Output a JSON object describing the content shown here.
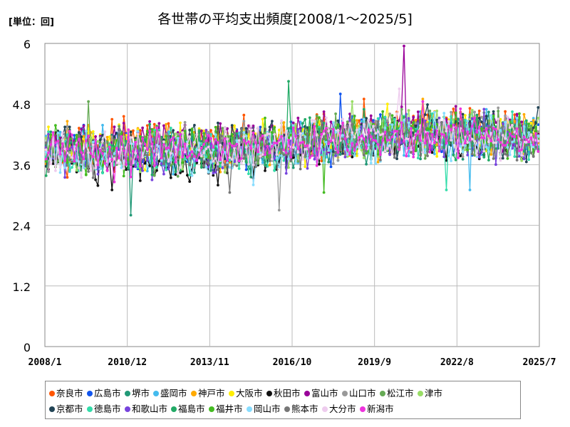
{
  "unit_label": "[単位：回]",
  "chart_data": {
    "type": "line",
    "title": "各世帯の平均支出頻度[2008/1～2025/5]",
    "xlabel": "",
    "ylabel": "",
    "ylim": [
      0,
      6
    ],
    "yticks": [
      0,
      1.2,
      2.4,
      3.6,
      4.8,
      6
    ],
    "ytick_labels": [
      "0",
      "1.2",
      "2.4",
      "3.6",
      "4.8",
      "6"
    ],
    "xlim": [
      "2008/1",
      "2025/7"
    ],
    "xtick_labels": [
      "2008/1",
      "2010/12",
      "2013/11",
      "2016/10",
      "2019/9",
      "2022/8",
      "2025/7"
    ],
    "grid": true,
    "legend_position": "bottom",
    "series": [
      {
        "name": "奈良市",
        "color": "#FF5500",
        "profile": [
          [
            0,
            3.95
          ],
          [
            35,
            4.0
          ],
          [
            70,
            3.95
          ],
          [
            105,
            4.05
          ],
          [
            140,
            4.25
          ],
          [
            175,
            4.35
          ],
          [
            209,
            4.2
          ]
        ],
        "extremes": [
          [
            135,
            4.9
          ]
        ]
      },
      {
        "name": "広島市",
        "color": "#1155EE",
        "profile": [
          [
            0,
            3.9
          ],
          [
            35,
            3.9
          ],
          [
            70,
            3.85
          ],
          [
            105,
            4.0
          ],
          [
            140,
            4.2
          ],
          [
            175,
            4.25
          ],
          [
            209,
            4.2
          ]
        ],
        "extremes": [
          [
            125,
            5.0
          ]
        ]
      },
      {
        "name": "堺市",
        "color": "#229977",
        "profile": [
          [
            0,
            3.9
          ],
          [
            35,
            3.85
          ],
          [
            70,
            3.85
          ],
          [
            105,
            3.95
          ],
          [
            140,
            4.15
          ],
          [
            175,
            4.2
          ],
          [
            209,
            4.15
          ]
        ],
        "extremes": [
          [
            36,
            2.6
          ]
        ]
      },
      {
        "name": "盛岡市",
        "color": "#44BBEE",
        "profile": [
          [
            0,
            3.85
          ],
          [
            35,
            3.85
          ],
          [
            70,
            3.85
          ],
          [
            105,
            3.95
          ],
          [
            140,
            4.1
          ],
          [
            175,
            4.2
          ],
          [
            209,
            4.1
          ]
        ],
        "extremes": [
          [
            180,
            3.1
          ]
        ]
      },
      {
        "name": "神戸市",
        "color": "#FFAA00",
        "profile": [
          [
            0,
            3.9
          ],
          [
            35,
            3.95
          ],
          [
            70,
            3.95
          ],
          [
            105,
            4.05
          ],
          [
            140,
            4.2
          ],
          [
            175,
            4.25
          ],
          [
            209,
            4.2
          ]
        ],
        "extremes": [
          [
            160,
            4.9
          ]
        ]
      },
      {
        "name": "大阪市",
        "color": "#FFEE00",
        "profile": [
          [
            0,
            3.95
          ],
          [
            35,
            3.95
          ],
          [
            70,
            4.0
          ],
          [
            105,
            4.05
          ],
          [
            140,
            4.2
          ],
          [
            175,
            4.25
          ],
          [
            209,
            4.2
          ]
        ],
        "extremes": [
          [
            145,
            4.8
          ]
        ]
      },
      {
        "name": "秋田市",
        "color": "#111111",
        "profile": [
          [
            0,
            3.75
          ],
          [
            35,
            3.6
          ],
          [
            70,
            3.6
          ],
          [
            105,
            3.85
          ],
          [
            140,
            4.05
          ],
          [
            175,
            4.1
          ],
          [
            209,
            4.05
          ]
        ],
        "extremes": [
          [
            28,
            3.1
          ]
        ]
      },
      {
        "name": "富山市",
        "color": "#990099",
        "profile": [
          [
            0,
            3.95
          ],
          [
            35,
            3.95
          ],
          [
            70,
            4.1
          ],
          [
            105,
            4.15
          ],
          [
            140,
            4.35
          ],
          [
            175,
            4.3
          ],
          [
            209,
            4.3
          ]
        ],
        "extremes": [
          [
            152,
            5.95
          ]
        ]
      },
      {
        "name": "山口市",
        "color": "#999999",
        "profile": [
          [
            0,
            3.9
          ],
          [
            35,
            3.95
          ],
          [
            70,
            3.95
          ],
          [
            105,
            4.05
          ],
          [
            140,
            4.2
          ],
          [
            175,
            4.25
          ],
          [
            209,
            4.2
          ]
        ],
        "extremes": [
          [
            99,
            2.7
          ]
        ]
      },
      {
        "name": "松江市",
        "color": "#66AA55",
        "profile": [
          [
            0,
            3.9
          ],
          [
            35,
            3.9
          ],
          [
            70,
            3.9
          ],
          [
            105,
            4.0
          ],
          [
            140,
            4.15
          ],
          [
            175,
            4.2
          ],
          [
            209,
            4.15
          ]
        ],
        "extremes": [
          [
            18,
            4.85
          ]
        ]
      },
      {
        "name": "津市",
        "color": "#99DD66",
        "profile": [
          [
            0,
            3.85
          ],
          [
            35,
            3.9
          ],
          [
            70,
            3.9
          ],
          [
            105,
            4.0
          ],
          [
            140,
            4.15
          ],
          [
            175,
            4.2
          ],
          [
            209,
            4.15
          ]
        ],
        "extremes": [
          [
            130,
            4.85
          ]
        ]
      },
      {
        "name": "京都市",
        "color": "#224455",
        "profile": [
          [
            0,
            3.9
          ],
          [
            35,
            3.95
          ],
          [
            70,
            3.95
          ],
          [
            105,
            4.05
          ],
          [
            140,
            4.2
          ],
          [
            175,
            4.25
          ],
          [
            209,
            4.2
          ]
        ],
        "extremes": [
          [
            190,
            4.65
          ]
        ]
      },
      {
        "name": "徳島市",
        "color": "#33DDAA",
        "profile": [
          [
            0,
            3.85
          ],
          [
            35,
            3.85
          ],
          [
            70,
            3.85
          ],
          [
            105,
            3.95
          ],
          [
            140,
            4.15
          ],
          [
            175,
            4.2
          ],
          [
            209,
            4.1
          ]
        ],
        "extremes": [
          [
            170,
            3.1
          ]
        ]
      },
      {
        "name": "和歌山市",
        "color": "#7744DD",
        "profile": [
          [
            0,
            3.8
          ],
          [
            35,
            3.8
          ],
          [
            70,
            3.8
          ],
          [
            105,
            3.95
          ],
          [
            140,
            4.1
          ],
          [
            175,
            4.15
          ],
          [
            209,
            4.05
          ]
        ],
        "extremes": [
          [
            45,
            3.3
          ]
        ]
      },
      {
        "name": "福島市",
        "color": "#22AA66",
        "profile": [
          [
            0,
            3.85
          ],
          [
            35,
            3.9
          ],
          [
            70,
            3.9
          ],
          [
            105,
            4.0
          ],
          [
            140,
            4.15
          ],
          [
            175,
            4.2
          ],
          [
            209,
            4.15
          ]
        ],
        "extremes": [
          [
            103,
            5.25
          ]
        ]
      },
      {
        "name": "福井市",
        "color": "#44BB22",
        "profile": [
          [
            0,
            3.9
          ],
          [
            35,
            3.9
          ],
          [
            70,
            3.95
          ],
          [
            105,
            4.05
          ],
          [
            140,
            4.2
          ],
          [
            175,
            4.25
          ],
          [
            209,
            4.2
          ]
        ],
        "extremes": [
          [
            118,
            3.05
          ]
        ]
      },
      {
        "name": "岡山市",
        "color": "#88DDFF",
        "profile": [
          [
            0,
            3.85
          ],
          [
            35,
            3.85
          ],
          [
            70,
            3.85
          ],
          [
            105,
            3.95
          ],
          [
            140,
            4.1
          ],
          [
            175,
            4.2
          ],
          [
            209,
            4.1
          ]
        ],
        "extremes": [
          [
            88,
            3.2
          ]
        ]
      },
      {
        "name": "熊本市",
        "color": "#777777",
        "profile": [
          [
            0,
            3.8
          ],
          [
            35,
            3.8
          ],
          [
            70,
            3.8
          ],
          [
            105,
            3.95
          ],
          [
            140,
            4.1
          ],
          [
            175,
            4.15
          ],
          [
            209,
            4.05
          ]
        ],
        "extremes": [
          [
            78,
            3.05
          ]
        ]
      },
      {
        "name": "大分市",
        "color": "#EECCEE",
        "profile": [
          [
            0,
            3.85
          ],
          [
            35,
            3.85
          ],
          [
            70,
            3.9
          ],
          [
            105,
            4.0
          ],
          [
            140,
            4.15
          ],
          [
            175,
            4.2
          ],
          [
            209,
            4.1
          ]
        ],
        "extremes": [
          [
            150,
            5.1
          ]
        ]
      },
      {
        "name": "新潟市",
        "color": "#EE33DD",
        "profile": [
          [
            0,
            3.85
          ],
          [
            35,
            3.85
          ],
          [
            70,
            3.9
          ],
          [
            105,
            4.0
          ],
          [
            140,
            4.15
          ],
          [
            175,
            4.2
          ],
          [
            209,
            4.15
          ]
        ],
        "extremes": [
          [
            160,
            4.85
          ]
        ]
      }
    ]
  }
}
